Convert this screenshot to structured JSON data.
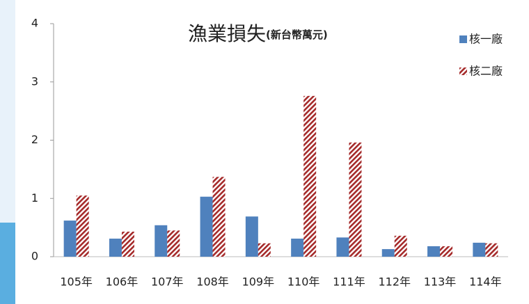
{
  "chart_data": {
    "type": "bar",
    "title": "漁業損失",
    "unit": "(新台幣萬元)",
    "categories": [
      "105年",
      "106年",
      "107年",
      "108年",
      "109年",
      "110年",
      "111年",
      "112年",
      "113年",
      "114年"
    ],
    "series": [
      {
        "name": "核一廠",
        "color": "#4f81bd",
        "pattern": "solid",
        "values": [
          0.62,
          0.31,
          0.54,
          1.03,
          0.69,
          0.31,
          0.33,
          0.13,
          0.18,
          0.24
        ]
      },
      {
        "name": "核二廠",
        "color": "#a52a2a",
        "pattern": "hatch",
        "values": [
          1.05,
          0.43,
          0.45,
          1.37,
          0.23,
          2.76,
          1.96,
          0.36,
          0.18,
          0.23
        ]
      }
    ],
    "ylim": [
      0,
      4
    ],
    "yticks": [
      0,
      1,
      2,
      3,
      4
    ],
    "grid": false,
    "legend": "top-right"
  }
}
